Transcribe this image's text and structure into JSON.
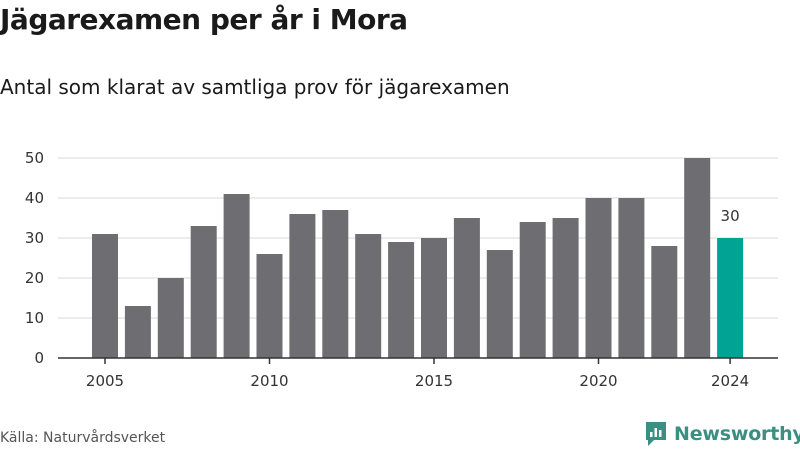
{
  "header": {
    "title": "Jägarexamen per år i Mora",
    "subtitle": "Antal som klarat av samtliga prov för jägarexamen"
  },
  "footer": {
    "source": "Källa: Naturvårdsverket",
    "brand": "Newsworthy",
    "brand_icon": "newsworthy-logo-icon"
  },
  "colors": {
    "bar": "#6e6d72",
    "highlight": "#00a394",
    "grid": "#d9d9d9",
    "axis": "#333333",
    "brand": "#3a8f82"
  },
  "chart_data": {
    "type": "bar",
    "categories": [
      2005,
      2006,
      2007,
      2008,
      2009,
      2010,
      2011,
      2012,
      2013,
      2014,
      2015,
      2016,
      2017,
      2018,
      2019,
      2020,
      2021,
      2022,
      2023,
      2024
    ],
    "values": [
      31,
      13,
      20,
      33,
      41,
      26,
      36,
      37,
      31,
      29,
      30,
      35,
      27,
      34,
      35,
      40,
      40,
      28,
      50,
      30
    ],
    "title": "Jägarexamen per år i Mora",
    "subtitle": "Antal som klarat av samtliga prov för jägarexamen",
    "xlabel": "",
    "ylabel": "",
    "ylim": [
      0,
      50
    ],
    "yticks": [
      0,
      10,
      20,
      30,
      40,
      50
    ],
    "xtick_labels": [
      "2005",
      "2010",
      "2015",
      "2020",
      "2024"
    ],
    "highlight_category": 2024,
    "highlight_label": "30",
    "grid": true,
    "legend": "none"
  }
}
